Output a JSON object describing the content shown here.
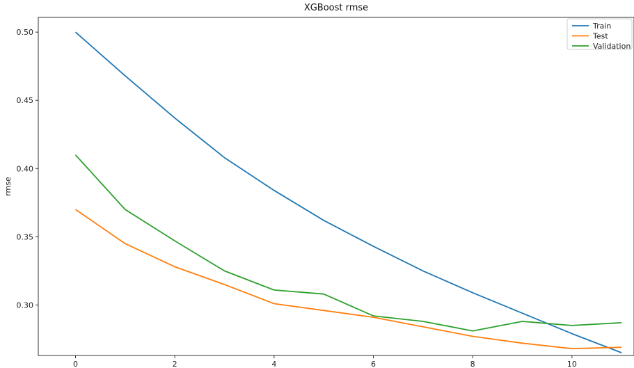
{
  "chart_data": {
    "type": "line",
    "title": "XGBoost rmse",
    "xlabel": "",
    "ylabel": "rmse",
    "x": [
      0,
      1,
      2,
      3,
      4,
      5,
      6,
      7,
      8,
      9,
      10,
      11
    ],
    "xlim": [
      -0.75,
      11.25
    ],
    "ylim": [
      0.263,
      0.5108
    ],
    "xticks": [
      0,
      2,
      4,
      6,
      8,
      10
    ],
    "yticks": [
      0.3,
      0.35,
      0.4,
      0.45,
      0.5
    ],
    "ytick_labels": [
      "0.30",
      "0.35",
      "0.40",
      "0.45",
      "0.50"
    ],
    "grid": false,
    "legend_position": "top-right",
    "series": [
      {
        "name": "Train",
        "color": "#1f77b4",
        "values": [
          0.5,
          0.468,
          0.437,
          0.408,
          0.384,
          0.362,
          0.343,
          0.325,
          0.309,
          0.294,
          0.279,
          0.265
        ]
      },
      {
        "name": "Test",
        "color": "#ff7f0e",
        "values": [
          0.37,
          0.345,
          0.328,
          0.315,
          0.301,
          0.296,
          0.291,
          0.284,
          0.277,
          0.272,
          0.268,
          0.269
        ]
      },
      {
        "name": "Validation",
        "color": "#2ca02c",
        "values": [
          0.41,
          0.37,
          0.347,
          0.325,
          0.311,
          0.308,
          0.292,
          0.288,
          0.281,
          0.288,
          0.285,
          0.287
        ]
      }
    ]
  }
}
